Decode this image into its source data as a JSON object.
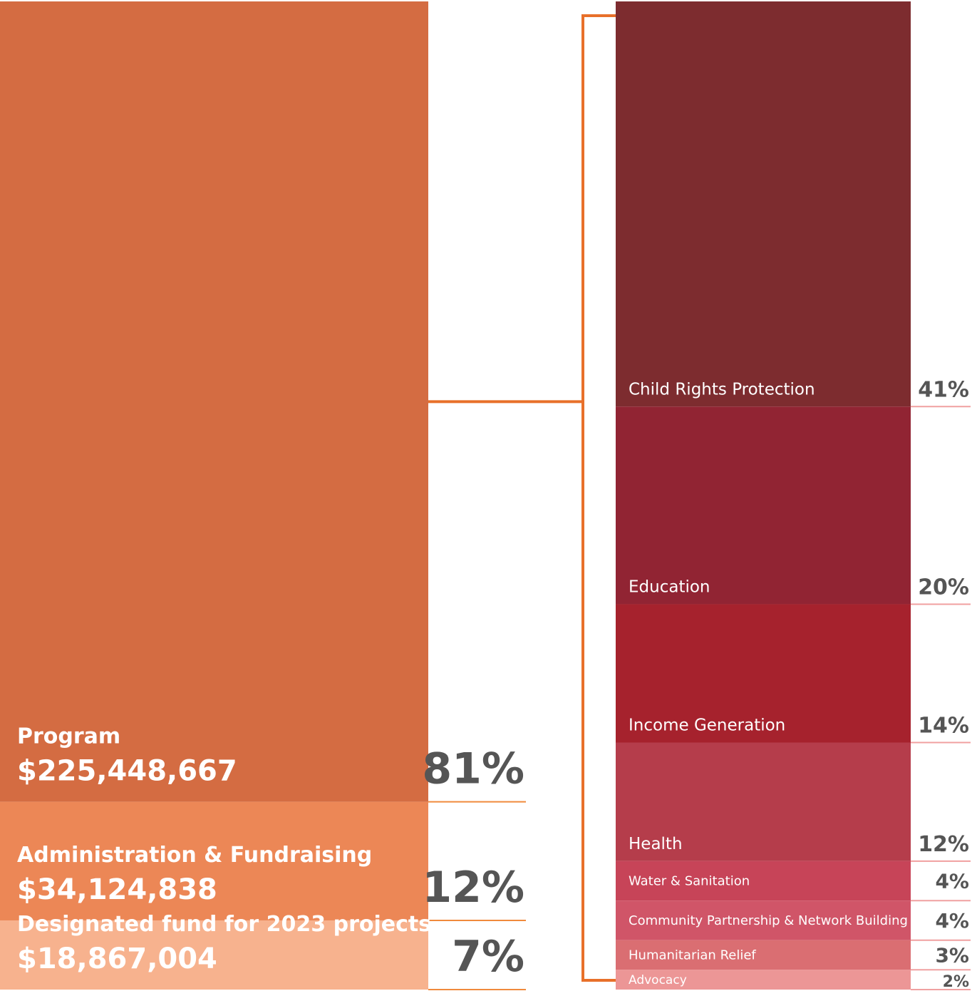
{
  "chart_data": [
    {
      "type": "stacked_bar",
      "categories": [
        "Program",
        "Administration & Fundraising",
        "Designated fund for 2023 projects"
      ],
      "amounts": [
        "$225,448,667",
        "$34,124,838",
        "$18,867,004"
      ],
      "values": [
        81,
        12,
        7
      ],
      "value_labels": [
        "81%",
        "12%",
        "7%"
      ],
      "colors": [
        "#d46c42",
        "#ec8756",
        "#f7b28e"
      ]
    },
    {
      "type": "stacked_bar",
      "categories": [
        "Child Rights Protection",
        "Education",
        "Income Generation",
        "Health",
        "Water & Sanitation",
        "Community Partnership & Network Building",
        "Humanitarian Relief",
        "Advocacy"
      ],
      "values": [
        41,
        20,
        14,
        12,
        4,
        4,
        3,
        2
      ],
      "value_labels": [
        "41%",
        "20%",
        "14%",
        "12%",
        "4%",
        "4%",
        "3%",
        "2%"
      ],
      "colors": [
        "#7d2c2f",
        "#912433",
        "#a6222d",
        "#b53d4b",
        "#c74458",
        "#d05568",
        "#da6e72",
        "#ec9696"
      ]
    }
  ]
}
